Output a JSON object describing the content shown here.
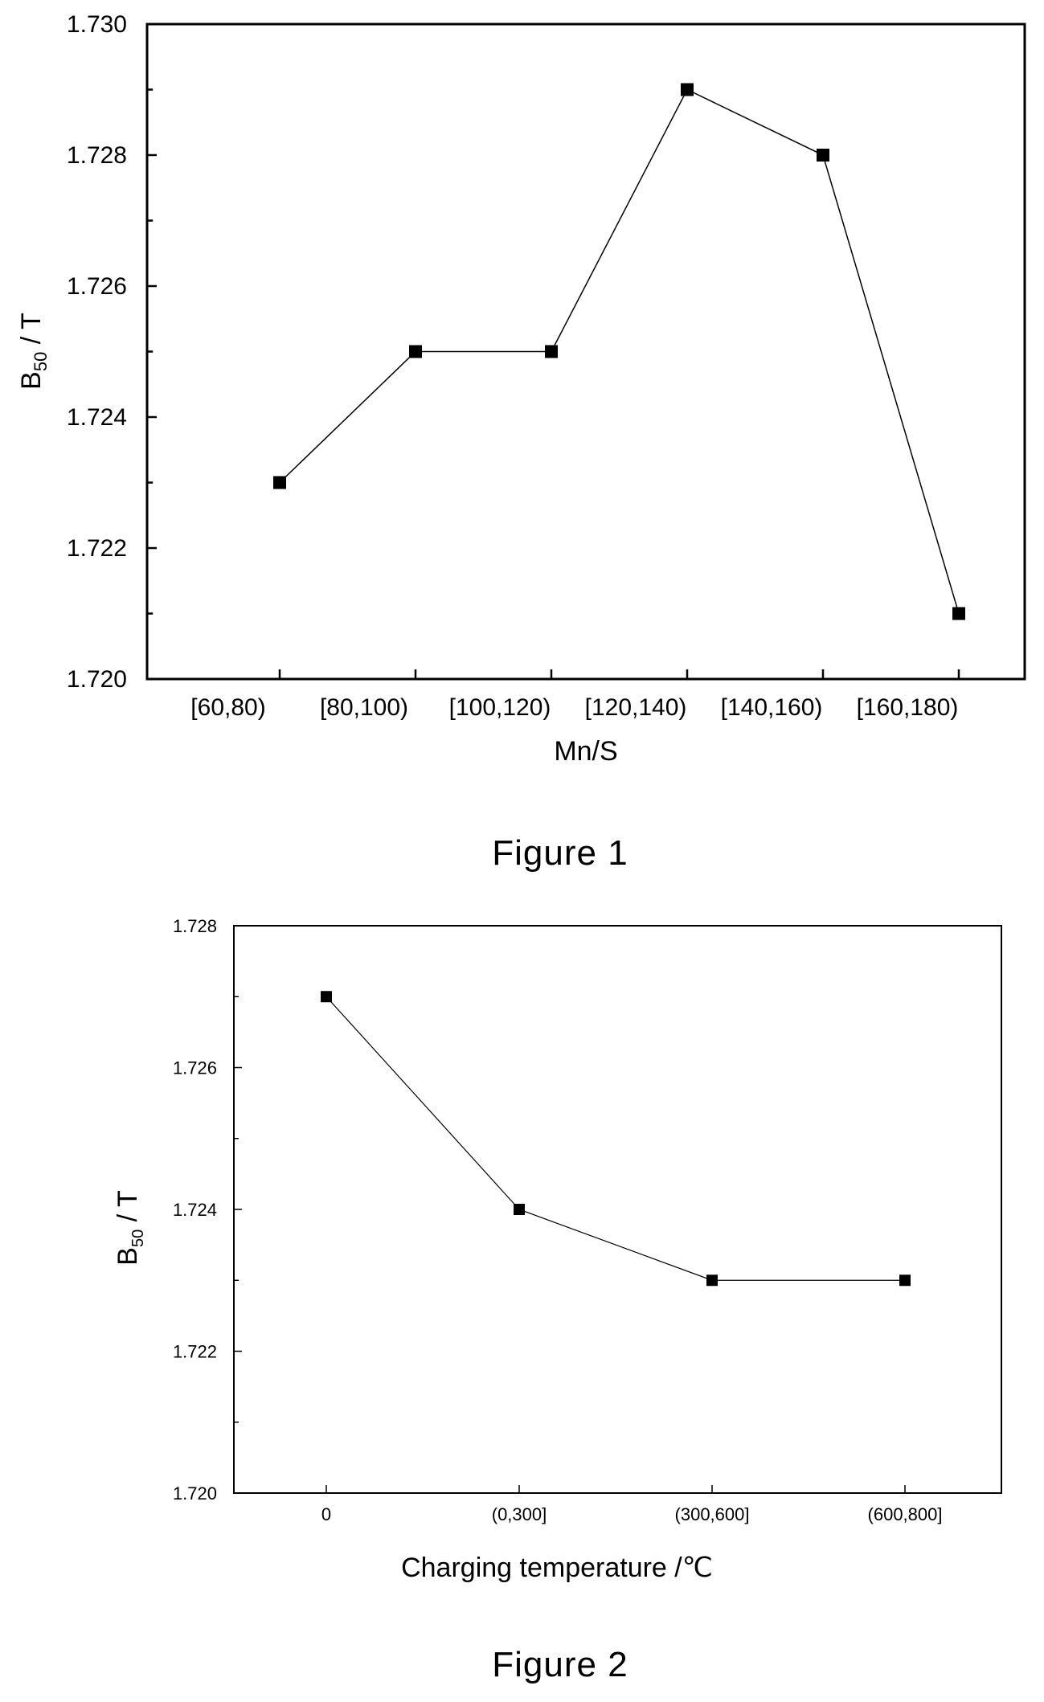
{
  "chart_data": [
    {
      "type": "line",
      "caption": "Figure 1",
      "xlabel": "Mn/S",
      "ylabel_main": "B",
      "ylabel_sub": "50",
      "ylabel_unit": " / T",
      "categories": [
        "[60,80)",
        "[80,100)",
        "[100,120)",
        "[120,140)",
        "[140,160)",
        "[160,180)"
      ],
      "series": [
        {
          "values": [
            1.723,
            1.725,
            1.725,
            1.729,
            1.728,
            1.721
          ]
        }
      ],
      "ylim": [
        1.72,
        1.73
      ],
      "yticks": [
        "1.720",
        "1.722",
        "1.724",
        "1.726",
        "1.728",
        "1.730"
      ],
      "grid": false,
      "marker": "square",
      "color": "#000000"
    },
    {
      "type": "line",
      "caption": "Figure 2",
      "xlabel": "Charging temperature   /℃",
      "ylabel_main": "B",
      "ylabel_sub": "50",
      "ylabel_unit": " / T",
      "categories": [
        "0",
        "(0,300]",
        "(300,600]",
        "(600,800]"
      ],
      "series": [
        {
          "values": [
            1.727,
            1.724,
            1.723,
            1.723
          ]
        }
      ],
      "ylim": [
        1.72,
        1.728
      ],
      "yticks": [
        "1.720",
        "1.722",
        "1.724",
        "1.726",
        "1.728"
      ],
      "grid": false,
      "marker": "square",
      "color": "#000000"
    }
  ]
}
